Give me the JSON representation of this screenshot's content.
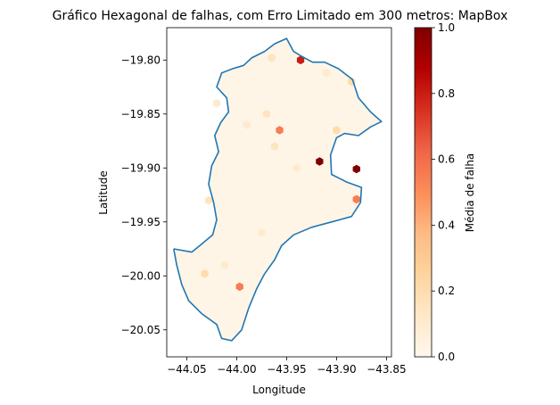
{
  "chart_data": {
    "type": "heatmap",
    "title": "Gráfico Hexagonal de falhas, com Erro Limitado em 300 metros: MapBox",
    "xlabel": "Longitude",
    "ylabel": "Latitude",
    "xlim": [
      -44.07,
      -43.845
    ],
    "ylim": [
      -20.075,
      -19.77
    ],
    "xticks": [
      -44.05,
      -44.0,
      -43.95,
      -43.9,
      -43.85
    ],
    "xtick_labels": [
      "−44.05",
      "−44.00",
      "−43.95",
      "−43.90",
      "−43.85"
    ],
    "yticks": [
      -19.8,
      -19.85,
      -19.9,
      -19.95,
      -20.0,
      -20.05
    ],
    "ytick_labels": [
      "−19.80",
      "−19.85",
      "−19.90",
      "−19.95",
      "−20.00",
      "−20.05"
    ],
    "colorbar": {
      "label": "Média de falha",
      "range": [
        0.0,
        1.0
      ],
      "ticks": [
        0.0,
        0.2,
        0.4,
        0.6,
        0.8,
        1.0
      ],
      "tick_labels": [
        "0.0",
        "0.2",
        "0.4",
        "0.6",
        "0.8",
        "1.0"
      ],
      "colormap": "OrRd",
      "stops": [
        "#fff7ec",
        "#fee8c8",
        "#fdd49e",
        "#fdbb84",
        "#fc8d59",
        "#ef6548",
        "#d7301f",
        "#b30000",
        "#7f0000"
      ]
    },
    "boundary_color": "#1f77b4",
    "boundary": [
      [
        -44.063,
        -19.975
      ],
      [
        -44.045,
        -19.978
      ],
      [
        -44.037,
        -19.972
      ],
      [
        -44.024,
        -19.962
      ],
      [
        -44.02,
        -19.948
      ],
      [
        -44.023,
        -19.932
      ],
      [
        -44.028,
        -19.915
      ],
      [
        -44.025,
        -19.898
      ],
      [
        -44.018,
        -19.885
      ],
      [
        -44.022,
        -19.87
      ],
      [
        -44.016,
        -19.858
      ],
      [
        -44.008,
        -19.848
      ],
      [
        -44.01,
        -19.835
      ],
      [
        -44.02,
        -19.825
      ],
      [
        -44.015,
        -19.812
      ],
      [
        -44.004,
        -19.808
      ],
      [
        -43.993,
        -19.805
      ],
      [
        -43.985,
        -19.798
      ],
      [
        -43.972,
        -19.792
      ],
      [
        -43.962,
        -19.785
      ],
      [
        -43.95,
        -19.78
      ],
      [
        -43.943,
        -19.792
      ],
      [
        -43.936,
        -19.796
      ],
      [
        -43.924,
        -19.802
      ],
      [
        -43.912,
        -19.802
      ],
      [
        -43.898,
        -19.808
      ],
      [
        -43.884,
        -19.818
      ],
      [
        -43.878,
        -19.835
      ],
      [
        -43.866,
        -19.848
      ],
      [
        -43.855,
        -19.857
      ],
      [
        -43.866,
        -19.862
      ],
      [
        -43.878,
        -19.87
      ],
      [
        -43.892,
        -19.868
      ],
      [
        -43.9,
        -19.872
      ],
      [
        -43.906,
        -19.888
      ],
      [
        -43.905,
        -19.906
      ],
      [
        -43.89,
        -19.913
      ],
      [
        -43.875,
        -19.918
      ],
      [
        -43.876,
        -19.932
      ],
      [
        -43.885,
        -19.945
      ],
      [
        -43.905,
        -19.95
      ],
      [
        -43.925,
        -19.955
      ],
      [
        -43.943,
        -19.962
      ],
      [
        -43.955,
        -19.972
      ],
      [
        -43.962,
        -19.985
      ],
      [
        -43.972,
        -19.998
      ],
      [
        -43.98,
        -20.012
      ],
      [
        -43.988,
        -20.03
      ],
      [
        -43.995,
        -20.05
      ],
      [
        -44.005,
        -20.06
      ],
      [
        -44.015,
        -20.058
      ],
      [
        -44.02,
        -20.045
      ],
      [
        -44.035,
        -20.035
      ],
      [
        -44.048,
        -20.023
      ],
      [
        -44.055,
        -20.008
      ],
      [
        -44.06,
        -19.99
      ],
      [
        -44.063,
        -19.975
      ]
    ],
    "hex_cells": [
      {
        "lon": -43.936,
        "lat": -19.8,
        "value": 0.8
      },
      {
        "lon": -43.917,
        "lat": -19.894,
        "value": 1.0
      },
      {
        "lon": -43.88,
        "lat": -19.901,
        "value": 1.0
      },
      {
        "lon": -43.88,
        "lat": -19.929,
        "value": 0.55
      },
      {
        "lon": -43.957,
        "lat": -19.865,
        "value": 0.55
      },
      {
        "lon": -43.997,
        "lat": -20.01,
        "value": 0.55
      },
      {
        "lon": -43.965,
        "lat": -19.798,
        "value": 0.15
      },
      {
        "lon": -43.885,
        "lat": -19.82,
        "value": 0.2
      },
      {
        "lon": -43.97,
        "lat": -19.85,
        "value": 0.15
      },
      {
        "lon": -43.9,
        "lat": -19.865,
        "value": 0.2
      },
      {
        "lon": -43.962,
        "lat": -19.88,
        "value": 0.15
      },
      {
        "lon": -44.032,
        "lat": -19.998,
        "value": 0.2
      },
      {
        "lon": -44.028,
        "lat": -19.93,
        "value": 0.15
      },
      {
        "lon": -43.91,
        "lat": -19.812,
        "value": 0.1
      },
      {
        "lon": -43.99,
        "lat": -19.86,
        "value": 0.1
      },
      {
        "lon": -43.975,
        "lat": -19.96,
        "value": 0.1
      },
      {
        "lon": -44.012,
        "lat": -19.99,
        "value": 0.1
      },
      {
        "lon": -43.94,
        "lat": -19.9,
        "value": 0.1
      },
      {
        "lon": -44.02,
        "lat": -19.84,
        "value": 0.1
      }
    ]
  }
}
